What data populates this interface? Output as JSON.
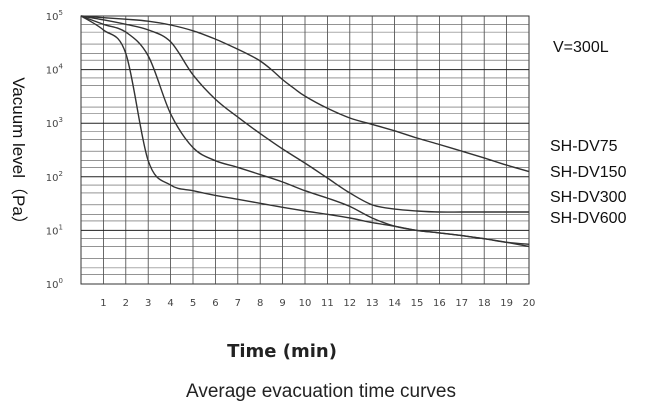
{
  "chart_data": {
    "type": "line",
    "xlabel": "Time (min)",
    "ylabel": "Vacuum level（Pa）",
    "caption": "Average evacuation time curves",
    "note": "V=300L",
    "y_scale": "log",
    "xlim": [
      0,
      20
    ],
    "ylim": [
      1,
      100000
    ],
    "x_ticks": [
      "1",
      "2",
      "3",
      "4",
      "5",
      "6",
      "7",
      "8",
      "9",
      "10",
      "11",
      "12",
      "13",
      "14",
      "15",
      "16",
      "17",
      "18",
      "19",
      "20"
    ],
    "y_ticks": [
      {
        "base": "10",
        "exp": "5"
      },
      {
        "base": "10",
        "exp": "4"
      },
      {
        "base": "10",
        "exp": "3"
      },
      {
        "base": "10",
        "exp": "2"
      },
      {
        "base": "10",
        "exp": "1"
      },
      {
        "base": "10",
        "exp": "0"
      }
    ],
    "grid": true,
    "series": [
      {
        "name": "SH-DV75",
        "x": [
          0,
          1,
          2,
          3,
          4,
          5,
          6,
          7,
          7.5,
          8,
          8.5,
          9,
          9.5,
          10,
          11,
          12,
          13,
          14,
          15,
          16,
          17,
          18,
          19,
          20
        ],
        "y": [
          100000,
          93000,
          87000,
          80000,
          68000,
          53000,
          37000,
          24000,
          19000,
          14500,
          10000,
          6500,
          4500,
          3200,
          1900,
          1250,
          950,
          720,
          530,
          400,
          300,
          225,
          165,
          125
        ]
      },
      {
        "name": "SH-DV150",
        "x": [
          0,
          1,
          2,
          3,
          4,
          5,
          6,
          7,
          8,
          9,
          10,
          11,
          12,
          13,
          14,
          15,
          16,
          17,
          18,
          19,
          20
        ],
        "y": [
          100000,
          85000,
          70000,
          55000,
          33000,
          8000,
          2800,
          1300,
          640,
          330,
          180,
          95,
          50,
          30,
          25,
          23,
          22,
          22,
          22,
          22,
          22
        ]
      },
      {
        "name": "SH-DV300",
        "x": [
          0,
          1,
          2,
          3,
          4,
          5,
          6,
          7,
          8,
          9,
          10,
          11,
          12,
          13,
          14,
          15,
          16,
          17,
          18,
          19,
          20
        ],
        "y": [
          100000,
          70000,
          50000,
          18000,
          1500,
          350,
          200,
          150,
          110,
          80,
          55,
          40,
          28,
          17,
          12,
          10,
          9,
          8,
          7,
          6,
          5
        ]
      },
      {
        "name": "SH-DV600",
        "x": [
          0,
          1,
          2,
          3,
          4,
          5,
          6,
          7,
          8,
          9,
          10,
          11,
          12,
          13,
          14,
          15,
          16,
          17,
          18,
          19,
          20
        ],
        "y": [
          100000,
          55000,
          20000,
          200,
          70,
          55,
          45,
          38,
          32,
          27,
          23,
          20,
          17,
          14,
          12,
          10,
          9,
          8,
          7,
          6,
          5.5
        ]
      }
    ]
  }
}
